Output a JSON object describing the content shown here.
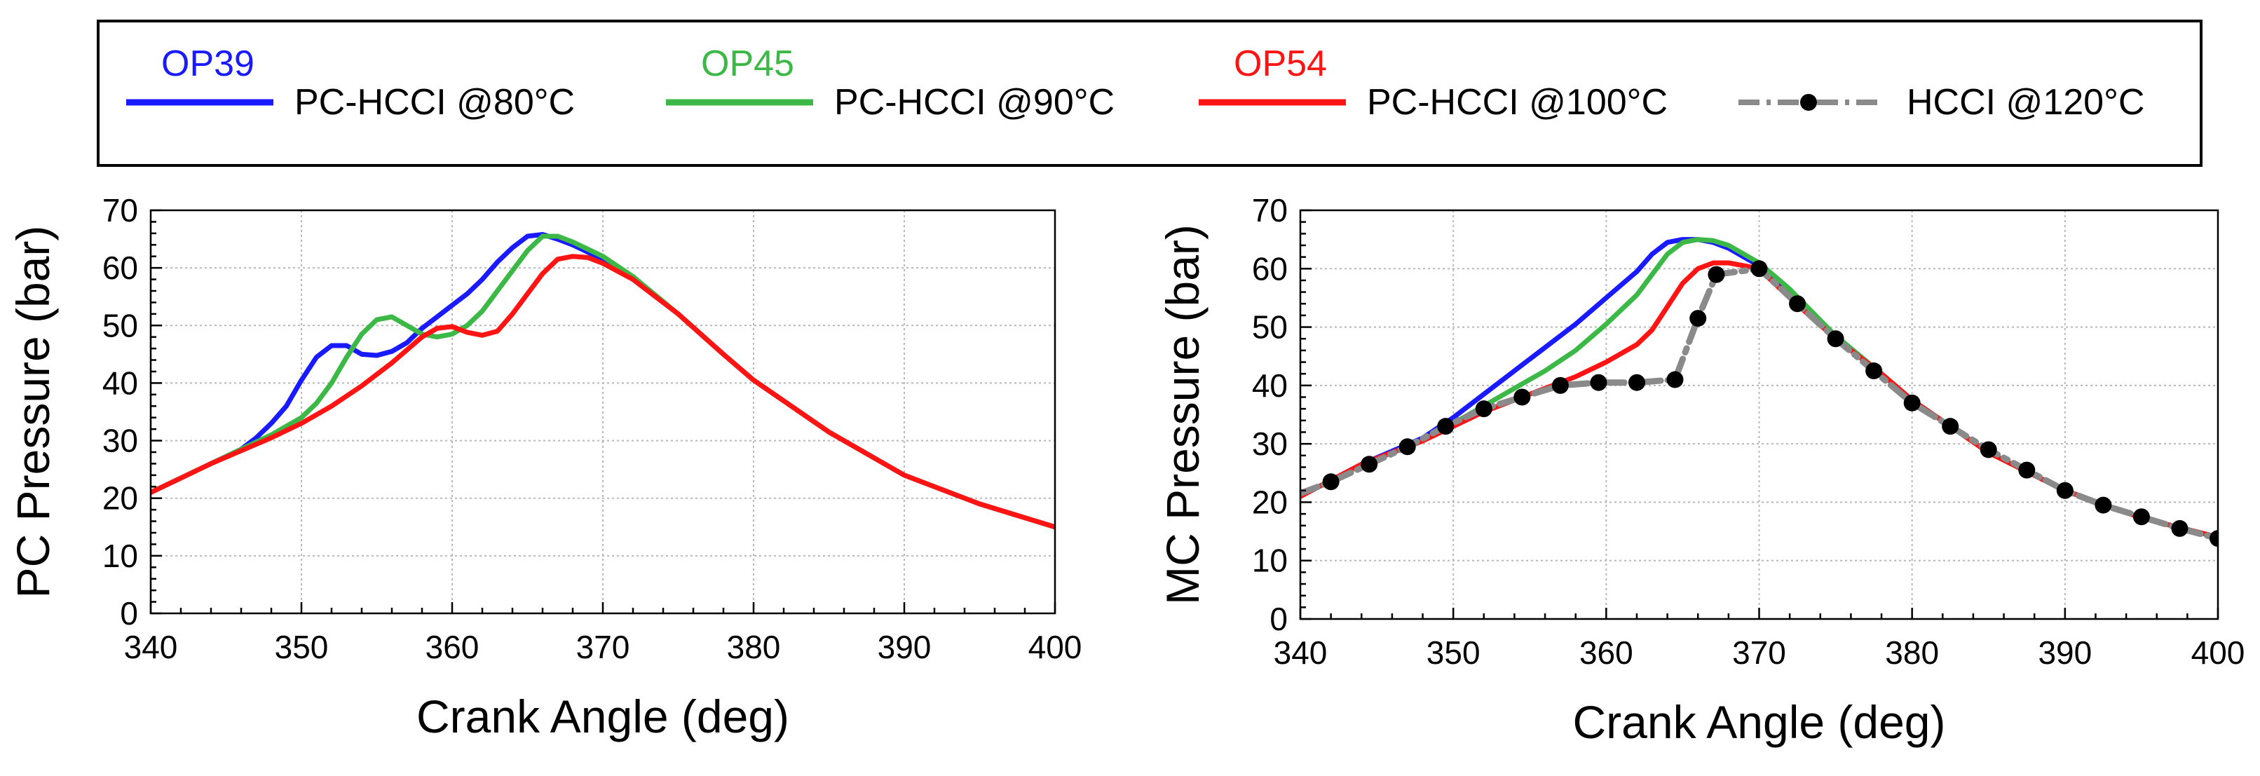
{
  "legend": {
    "entries": [
      {
        "tag": "OP39",
        "label": "PC-HCCI @80°C",
        "color": "#1a1aff",
        "style": "solid"
      },
      {
        "tag": "OP45",
        "label": "PC-HCCI @90°C",
        "color": "#3cb846",
        "style": "solid"
      },
      {
        "tag": "OP54",
        "label": "PC-HCCI @100°C",
        "color": "#ff1414",
        "style": "solid"
      },
      {
        "tag": "",
        "label": "HCCI @120°C",
        "color": "#8a8a8a",
        "style": "dashdot-marker"
      }
    ]
  },
  "chart_data": [
    {
      "type": "line",
      "title": "",
      "xlabel": "Crank Angle (deg)",
      "ylabel": "PC Pressure (bar)",
      "xlim": [
        340,
        400
      ],
      "ylim": [
        0,
        70
      ],
      "xticks": [
        340,
        350,
        360,
        370,
        380,
        390,
        400
      ],
      "yticks": [
        0,
        10,
        20,
        30,
        40,
        50,
        60,
        70
      ],
      "grid": true,
      "series": [
        {
          "name": "OP39 PC-HCCI @80°C",
          "color": "#1a1aff",
          "x": [
            340,
            342,
            344,
            346,
            347,
            348,
            349,
            350,
            351,
            352,
            353,
            354,
            355,
            356,
            357,
            358,
            359,
            360,
            361,
            362,
            363,
            364,
            365,
            366,
            367,
            368,
            370,
            372,
            375,
            378,
            380,
            385,
            390,
            395,
            400
          ],
          "y": [
            21,
            23.5,
            26,
            28.5,
            30.5,
            33,
            36,
            40.5,
            44.5,
            46.5,
            46.5,
            45,
            44.8,
            45.5,
            47,
            49.5,
            51.5,
            53.5,
            55.5,
            58,
            61,
            63.5,
            65.5,
            65.8,
            65,
            64,
            61.5,
            58,
            52,
            45,
            40.5,
            31.5,
            24,
            19,
            15
          ]
        },
        {
          "name": "OP45 PC-HCCI @90°C",
          "color": "#3cb846",
          "x": [
            340,
            344,
            348,
            350,
            351,
            352,
            353,
            354,
            355,
            356,
            357,
            358,
            359,
            360,
            361,
            362,
            363,
            364,
            365,
            366,
            367,
            368,
            370,
            372,
            375,
            378,
            380,
            385,
            390,
            395,
            400
          ],
          "y": [
            21,
            26,
            31,
            34,
            36.5,
            40,
            44.5,
            48.5,
            51,
            51.5,
            50,
            48.5,
            48,
            48.5,
            50,
            52.5,
            56,
            59.5,
            63,
            65.5,
            65.5,
            64.5,
            62,
            58.5,
            52,
            45,
            40.5,
            31.5,
            24,
            19,
            15
          ]
        },
        {
          "name": "OP54 PC-HCCI @100°C",
          "color": "#ff1414",
          "x": [
            340,
            344,
            348,
            350,
            352,
            354,
            356,
            358,
            359,
            360,
            361,
            362,
            363,
            364,
            365,
            366,
            367,
            368,
            369,
            370,
            372,
            375,
            378,
            380,
            385,
            390,
            395,
            400
          ],
          "y": [
            21,
            26,
            30.5,
            33,
            36,
            39.5,
            43.5,
            48,
            49.5,
            49.8,
            48.8,
            48.3,
            49,
            52,
            55.5,
            59,
            61.5,
            62,
            61.8,
            60.8,
            58,
            52,
            45,
            40.5,
            31.5,
            24,
            19,
            15
          ]
        }
      ]
    },
    {
      "type": "line",
      "title": "",
      "xlabel": "Crank Angle (deg)",
      "ylabel": "MC Pressure (bar)",
      "xlim": [
        340,
        400
      ],
      "ylim": [
        0,
        70
      ],
      "xticks": [
        340,
        350,
        360,
        370,
        380,
        390,
        400
      ],
      "yticks": [
        0,
        10,
        20,
        30,
        40,
        50,
        60,
        70
      ],
      "grid": true,
      "series": [
        {
          "name": "OP39 PC-HCCI @80°C",
          "color": "#1a1aff",
          "x": [
            340,
            344,
            348,
            350,
            352,
            354,
            356,
            358,
            360,
            362,
            363,
            364,
            365,
            366,
            367,
            368,
            370,
            372,
            375,
            378,
            380,
            385,
            390,
            395,
            400
          ],
          "y": [
            21,
            26.5,
            31,
            34.5,
            38.5,
            42.5,
            46.5,
            50.5,
            55,
            59.5,
            62.5,
            64.5,
            65,
            65,
            64.5,
            63.5,
            60.5,
            56,
            48.5,
            42,
            37.5,
            28.5,
            22,
            17.3,
            14
          ]
        },
        {
          "name": "OP45 PC-HCCI @90°C",
          "color": "#3cb846",
          "x": [
            340,
            344,
            348,
            350,
            352,
            354,
            356,
            358,
            360,
            362,
            363,
            364,
            365,
            366,
            367,
            368,
            370,
            372,
            375,
            378,
            380,
            385,
            390,
            395,
            400
          ],
          "y": [
            21,
            26.5,
            30.5,
            33.5,
            36.5,
            39.5,
            42.5,
            46,
            50.5,
            55.5,
            59,
            62.5,
            64.5,
            65,
            64.8,
            64,
            61,
            56.5,
            48.5,
            42,
            37.5,
            28.5,
            22,
            17.3,
            14
          ]
        },
        {
          "name": "OP54 PC-HCCI @100°C",
          "color": "#ff1414",
          "x": [
            340,
            344,
            348,
            350,
            352,
            354,
            356,
            358,
            360,
            362,
            363,
            364,
            365,
            366,
            367,
            368,
            369,
            370,
            372,
            375,
            378,
            380,
            385,
            390,
            395,
            400
          ],
          "y": [
            21,
            26.5,
            30.5,
            33,
            35.5,
            37.5,
            39.5,
            41.5,
            44,
            47,
            49.5,
            53.5,
            57.5,
            60,
            61,
            61,
            60.5,
            60,
            55,
            48,
            42,
            37.5,
            28.5,
            22,
            17.3,
            14
          ]
        },
        {
          "name": "HCCI @120°C",
          "color": "#8a8a8a",
          "x": [
            340,
            342,
            344.5,
            347,
            349.5,
            352,
            354.5,
            357,
            359.5,
            362,
            364.5,
            366,
            367.2,
            370,
            372.5,
            375,
            377.5,
            380,
            382.5,
            385,
            387.5,
            390,
            392.5,
            395,
            397.5,
            400
          ],
          "y": [
            21.5,
            23.5,
            26.5,
            29.5,
            33,
            36,
            38,
            40,
            40.5,
            40.5,
            41,
            51.5,
            59,
            60,
            54,
            48,
            42.5,
            37,
            33,
            29,
            25.5,
            22,
            19.5,
            17.5,
            15.5,
            13.8
          ],
          "markers": [
            false,
            true,
            true,
            true,
            true,
            true,
            true,
            true,
            true,
            true,
            true,
            true,
            true,
            true,
            true,
            true,
            true,
            true,
            true,
            true,
            true,
            true,
            true,
            true,
            true,
            true
          ]
        }
      ]
    }
  ]
}
